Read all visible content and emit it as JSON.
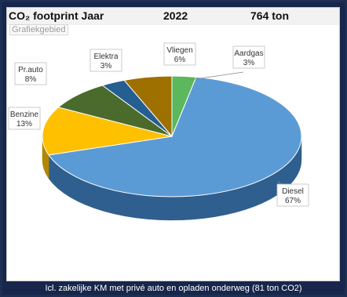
{
  "header": {
    "title": "CO₂ footprint Jaar",
    "year": "2022",
    "total": "764 ton"
  },
  "chart_area_tag": "Grafiekgebied",
  "caption": "Icl. zakelijke KM met privé auto en opladen onderweg (81 ton CO2)",
  "chart_data": {
    "type": "pie",
    "title": "CO₂ footprint Jaar",
    "style": "3d",
    "slices": [
      {
        "name": "Aardgas",
        "value": 3,
        "label": "3%",
        "color": "#5cb85c",
        "side": "#3f8f3f"
      },
      {
        "name": "Diesel",
        "value": 67,
        "label": "67%",
        "color": "#5b9bd5",
        "side": "#2f5f8f"
      },
      {
        "name": "Benzine",
        "value": 13,
        "label": "13%",
        "color": "#ffc000",
        "side": "#b38600"
      },
      {
        "name": "Pr.auto",
        "value": 8,
        "label": "8%",
        "color": "#4a6b2b",
        "side": "#2f451b"
      },
      {
        "name": "Elektra",
        "value": 3,
        "label": "3%",
        "color": "#255e91",
        "side": "#173d60"
      },
      {
        "name": "Vliegen",
        "value": 6,
        "label": "6%",
        "color": "#9e7000",
        "side": "#6b4c00"
      }
    ]
  }
}
